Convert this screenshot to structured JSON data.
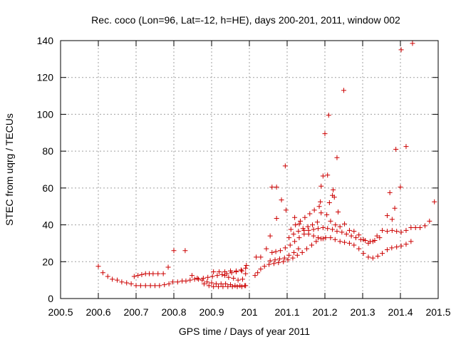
{
  "chart_data": {
    "type": "scatter",
    "title": "Rec. coco (Lon=96, Lat=-12, h=HE), days 200-201, 2011, window 002",
    "xlabel": "GPS time / Days of year 2011",
    "ylabel": "STEC from uqrg / TECUs",
    "xlim": [
      200.5,
      201.5
    ],
    "ylim": [
      0,
      140
    ],
    "xticks": [
      "200.5",
      "200.6",
      "200.7",
      "200.8",
      "200.9",
      "201",
      "201.1",
      "201.2",
      "201.3",
      "201.4",
      "201.5"
    ],
    "yticks": [
      "0",
      "20",
      "40",
      "60",
      "80",
      "100",
      "120",
      "140"
    ],
    "grid": true,
    "marker": "+",
    "color": "#cc0000",
    "points": [
      [
        200.6,
        17.5
      ],
      [
        200.612,
        14.0
      ],
      [
        200.625,
        12.0
      ],
      [
        200.637,
        10.5
      ],
      [
        200.65,
        10.0
      ],
      [
        200.662,
        9.0
      ],
      [
        200.675,
        8.5
      ],
      [
        200.687,
        8.0
      ],
      [
        200.695,
        12.0
      ],
      [
        200.705,
        12.5
      ],
      [
        200.715,
        13.0
      ],
      [
        200.725,
        13.5
      ],
      [
        200.735,
        13.5
      ],
      [
        200.745,
        13.5
      ],
      [
        200.758,
        13.5
      ],
      [
        200.772,
        13.5
      ],
      [
        200.785,
        17.0
      ],
      [
        200.7,
        7.0
      ],
      [
        200.712,
        7.0
      ],
      [
        200.725,
        7.0
      ],
      [
        200.738,
        7.0
      ],
      [
        200.75,
        7.0
      ],
      [
        200.762,
        7.0
      ],
      [
        200.775,
        7.5
      ],
      [
        200.787,
        8.0
      ],
      [
        200.797,
        9.0
      ],
      [
        200.8,
        26.0
      ],
      [
        200.81,
        9.0
      ],
      [
        200.822,
        9.5
      ],
      [
        200.832,
        9.5
      ],
      [
        200.843,
        10.0
      ],
      [
        200.855,
        10.5
      ],
      [
        200.865,
        10.5
      ],
      [
        200.878,
        11.0
      ],
      [
        200.89,
        11.5
      ],
      [
        200.902,
        12.0
      ],
      [
        200.915,
        12.5
      ],
      [
        200.928,
        13.0
      ],
      [
        200.94,
        13.5
      ],
      [
        200.953,
        14.0
      ],
      [
        200.965,
        14.5
      ],
      [
        200.978,
        15.5
      ],
      [
        200.99,
        16.5
      ],
      [
        200.83,
        26.0
      ],
      [
        200.848,
        12.5
      ],
      [
        200.862,
        11.0
      ],
      [
        200.875,
        10.0
      ],
      [
        200.888,
        9.0
      ],
      [
        200.9,
        8.5
      ],
      [
        200.912,
        8.0
      ],
      [
        200.925,
        8.0
      ],
      [
        200.937,
        8.0
      ],
      [
        200.95,
        7.5
      ],
      [
        200.962,
        7.0
      ],
      [
        200.975,
        7.0
      ],
      [
        200.988,
        7.0
      ],
      [
        200.88,
        8.0
      ],
      [
        200.893,
        7.0
      ],
      [
        200.905,
        6.5
      ],
      [
        200.918,
        6.5
      ],
      [
        200.93,
        6.5
      ],
      [
        200.943,
        6.5
      ],
      [
        200.955,
        6.5
      ],
      [
        200.968,
        6.5
      ],
      [
        200.98,
        6.5
      ],
      [
        200.99,
        7.0
      ],
      [
        200.905,
        14.5
      ],
      [
        200.92,
        14.5
      ],
      [
        200.935,
        14.5
      ],
      [
        200.95,
        15.0
      ],
      [
        200.965,
        15.0
      ],
      [
        200.98,
        15.0
      ],
      [
        200.992,
        18.0
      ],
      [
        200.99,
        13.5
      ],
      [
        200.982,
        10.5
      ],
      [
        200.97,
        10.0
      ],
      [
        200.958,
        11.0
      ],
      [
        200.945,
        11.5
      ],
      [
        200.935,
        12.5
      ],
      [
        201.015,
        12.5
      ],
      [
        201.022,
        14.0
      ],
      [
        201.03,
        16.0
      ],
      [
        201.04,
        17.5
      ],
      [
        201.052,
        18.5
      ],
      [
        201.065,
        19.0
      ],
      [
        201.077,
        19.5
      ],
      [
        201.09,
        20.0
      ],
      [
        201.102,
        21.0
      ],
      [
        201.115,
        22.0
      ],
      [
        201.127,
        23.5
      ],
      [
        201.14,
        25.0
      ],
      [
        201.152,
        27.0
      ],
      [
        201.165,
        29.0
      ],
      [
        201.177,
        31.0
      ],
      [
        201.19,
        32.5
      ],
      [
        201.202,
        33.0
      ],
      [
        201.215,
        33.0
      ],
      [
        201.227,
        32.0
      ],
      [
        201.24,
        31.0
      ],
      [
        201.252,
        30.5
      ],
      [
        201.265,
        30.0
      ],
      [
        201.277,
        29.0
      ],
      [
        201.29,
        27.0
      ],
      [
        201.302,
        24.5
      ],
      [
        201.315,
        22.5
      ],
      [
        201.327,
        22.0
      ],
      [
        201.34,
        23.0
      ],
      [
        201.352,
        24.5
      ],
      [
        201.365,
        26.5
      ],
      [
        201.377,
        27.5
      ],
      [
        201.39,
        28.0
      ],
      [
        201.402,
        28.5
      ],
      [
        201.415,
        29.5
      ],
      [
        201.428,
        31.0
      ],
      [
        201.018,
        22.5
      ],
      [
        201.03,
        22.5
      ],
      [
        201.045,
        27.0
      ],
      [
        201.055,
        34.0
      ],
      [
        201.06,
        60.5
      ],
      [
        201.072,
        60.5
      ],
      [
        201.072,
        43.5
      ],
      [
        201.085,
        53.5
      ],
      [
        201.095,
        72.0
      ],
      [
        201.097,
        48.0
      ],
      [
        201.06,
        25.0
      ],
      [
        201.07,
        25.5
      ],
      [
        201.082,
        26.0
      ],
      [
        201.095,
        27.5
      ],
      [
        201.108,
        29.0
      ],
      [
        201.12,
        31.0
      ],
      [
        201.132,
        33.0
      ],
      [
        201.145,
        35.0
      ],
      [
        201.157,
        37.0
      ],
      [
        201.17,
        37.5
      ],
      [
        201.182,
        38.0
      ],
      [
        201.195,
        38.5
      ],
      [
        201.207,
        38.0
      ],
      [
        201.22,
        37.5
      ],
      [
        201.232,
        36.5
      ],
      [
        201.245,
        36.0
      ],
      [
        201.257,
        35.0
      ],
      [
        201.27,
        34.0
      ],
      [
        201.282,
        33.0
      ],
      [
        201.295,
        32.0
      ],
      [
        201.307,
        31.5
      ],
      [
        201.32,
        31.0
      ],
      [
        201.332,
        31.5
      ],
      [
        201.345,
        33.0
      ],
      [
        201.055,
        20.5
      ],
      [
        201.068,
        21.0
      ],
      [
        201.08,
        21.5
      ],
      [
        201.093,
        22.0
      ],
      [
        201.105,
        23.5
      ],
      [
        201.118,
        25.0
      ],
      [
        201.13,
        27.0
      ],
      [
        201.105,
        33.0
      ],
      [
        201.117,
        35.0
      ],
      [
        201.13,
        36.5
      ],
      [
        201.142,
        38.0
      ],
      [
        201.155,
        39.0
      ],
      [
        201.167,
        40.0
      ],
      [
        201.18,
        41.5
      ],
      [
        201.11,
        37.5
      ],
      [
        201.122,
        40.0
      ],
      [
        201.135,
        42.0
      ],
      [
        201.147,
        44.0
      ],
      [
        201.16,
        46.0
      ],
      [
        201.172,
        48.0
      ],
      [
        201.185,
        50.0
      ],
      [
        201.188,
        52.5
      ],
      [
        201.19,
        61.0
      ],
      [
        201.195,
        66.5
      ],
      [
        201.2,
        89.5
      ],
      [
        201.207,
        67.0
      ],
      [
        201.21,
        99.5
      ],
      [
        201.212,
        52.0
      ],
      [
        201.22,
        56.0
      ],
      [
        201.222,
        59.0
      ],
      [
        201.225,
        55.0
      ],
      [
        201.232,
        76.5
      ],
      [
        201.235,
        47.0
      ],
      [
        201.25,
        113.0
      ],
      [
        201.19,
        46.5
      ],
      [
        201.205,
        45.5
      ],
      [
        201.215,
        42.0
      ],
      [
        201.228,
        40.0
      ],
      [
        201.24,
        39.0
      ],
      [
        201.252,
        40.5
      ],
      [
        201.265,
        37.0
      ],
      [
        201.277,
        36.5
      ],
      [
        201.29,
        34.5
      ],
      [
        201.302,
        32.0
      ],
      [
        201.315,
        30.0
      ],
      [
        201.327,
        31.0
      ],
      [
        201.338,
        34.0
      ],
      [
        201.352,
        37.0
      ],
      [
        201.365,
        45.0
      ],
      [
        201.372,
        57.5
      ],
      [
        201.378,
        43.0
      ],
      [
        201.385,
        49.0
      ],
      [
        201.388,
        81.0
      ],
      [
        201.4,
        60.5
      ],
      [
        201.402,
        135.0
      ],
      [
        201.415,
        82.5
      ],
      [
        201.432,
        138.5
      ],
      [
        201.365,
        36.5
      ],
      [
        201.378,
        37.0
      ],
      [
        201.39,
        36.5
      ],
      [
        201.402,
        36.0
      ],
      [
        201.415,
        37.0
      ],
      [
        201.428,
        38.5
      ],
      [
        201.44,
        38.5
      ],
      [
        201.452,
        38.5
      ],
      [
        201.465,
        39.5
      ],
      [
        201.477,
        42.0
      ],
      [
        201.49,
        52.5
      ],
      [
        201.12,
        44.0
      ],
      [
        201.132,
        40.5
      ],
      [
        201.145,
        37.0
      ],
      [
        201.157,
        35.0
      ],
      [
        201.17,
        34.0
      ],
      [
        201.182,
        33.0
      ],
      [
        201.195,
        32.5
      ]
    ]
  }
}
